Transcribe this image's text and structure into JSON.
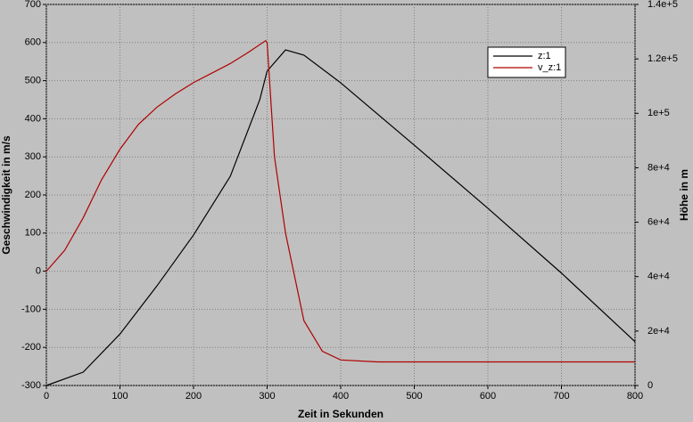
{
  "chart_data": {
    "type": "line",
    "xlabel": "Zeit in Sekunden",
    "ylabel": "Geschwindigkeit in m/s",
    "y2label": "Höhe in m",
    "xlim": [
      0,
      800
    ],
    "xticks": [
      0,
      100,
      200,
      300,
      400,
      500,
      600,
      700,
      800
    ],
    "ylim": [
      -300,
      700
    ],
    "yticks": [
      -300,
      -200,
      -100,
      0,
      100,
      200,
      300,
      400,
      500,
      600,
      700
    ],
    "y2lim": [
      0,
      140000
    ],
    "y2ticks": [
      0,
      {
        "value": 20000,
        "label": "2e+4"
      },
      {
        "value": 40000,
        "label": "4e+4"
      },
      {
        "value": 60000,
        "label": "6e+4"
      },
      {
        "value": 80000,
        "label": "8e+4"
      },
      {
        "value": 100000,
        "label": "1e+5"
      },
      {
        "value": 120000,
        "label": "1.2e+5"
      },
      {
        "value": 140000,
        "label": "1.4e+5"
      }
    ],
    "grid": true,
    "legend": "upper right",
    "series": [
      {
        "name": "z:1",
        "color": "#000000",
        "axis": "y2",
        "x": [
          0,
          50,
          100,
          150,
          200,
          250,
          290,
          300,
          325,
          350,
          400,
          500,
          600,
          700,
          800
        ],
        "values": [
          0,
          4900,
          18900,
          36500,
          55300,
          76900,
          105000,
          115500,
          123300,
          121400,
          111200,
          88300,
          65100,
          41300,
          16100
        ]
      },
      {
        "name": "v_z:1",
        "color": "#b00000",
        "x": [
          0,
          25,
          50,
          75,
          100,
          125,
          150,
          175,
          200,
          225,
          250,
          275,
          298,
          300,
          310,
          325,
          350,
          375,
          400,
          450,
          500,
          600,
          700,
          800
        ],
        "values": [
          0,
          55,
          140,
          240,
          320,
          385,
          430,
          465,
          495,
          520,
          545,
          575,
          605,
          600,
          300,
          100,
          -130,
          -210,
          -233,
          -238,
          -238,
          -238,
          -238,
          -238
        ]
      }
    ]
  }
}
